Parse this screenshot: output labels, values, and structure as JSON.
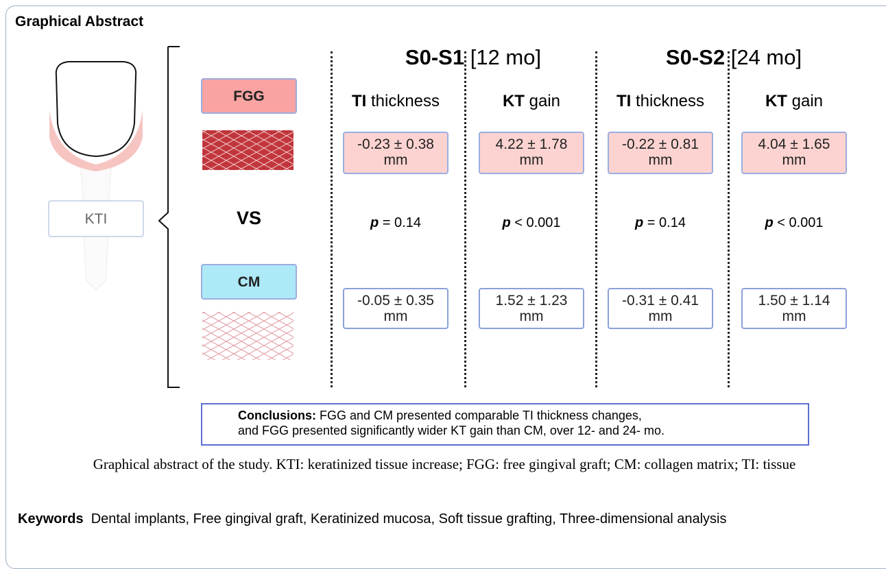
{
  "header": {
    "title": "Graphical Abstract"
  },
  "left": {
    "procedure": "KTI",
    "group_a": "FGG",
    "versus": "VS",
    "group_b": "CM"
  },
  "periods": [
    {
      "code": "S0-S1",
      "duration": "[12 mo]",
      "columns": [
        {
          "label_bold": "TI",
          "label": "thickness",
          "fgg": {
            "value": "-0.23 ± 0.38",
            "unit": "mm"
          },
          "p_label": "p",
          "p_value": "= 0.14",
          "cm": {
            "value": "-0.05 ± 0.35",
            "unit": "mm"
          }
        },
        {
          "label_bold": "KT",
          "label": "gain",
          "fgg": {
            "value": "4.22 ± 1.78",
            "unit": "mm"
          },
          "p_label": "p",
          "p_value": "< 0.001",
          "cm": {
            "value": "1.52 ± 1.23",
            "unit": "mm"
          }
        }
      ]
    },
    {
      "code": "S0-S2",
      "duration": "[24 mo]",
      "columns": [
        {
          "label_bold": "TI",
          "label": "thickness",
          "fgg": {
            "value": "-0.22 ± 0.81",
            "unit": "mm"
          },
          "p_label": "p",
          "p_value": "= 0.14",
          "cm": {
            "value": "-0.31 ± 0.41",
            "unit": "mm"
          }
        },
        {
          "label_bold": "KT",
          "label": "gain",
          "fgg": {
            "value": "4.04 ± 1.65",
            "unit": "mm"
          },
          "p_label": "p",
          "p_value": "< 0.001",
          "cm": {
            "value": "1.50 ± 1.14",
            "unit": "mm"
          }
        }
      ]
    }
  ],
  "conclusion": {
    "label": "Conclusions:",
    "lines": [
      "FGG and CM presented comparable TI thickness changes,",
      "and FGG presented significantly wider KT gain than CM, over 12- and 24- mo."
    ]
  },
  "caption": "Graphical abstract of the study. KTI: keratinized tissue increase; FGG: free gingival graft; CM: collagen matrix; TI: tissue",
  "keywords": {
    "label": "Keywords",
    "text": "Dental implants, Free gingival graft, Keratinized mucosa, Soft tissue grafting, Three-dimensional analysis"
  }
}
